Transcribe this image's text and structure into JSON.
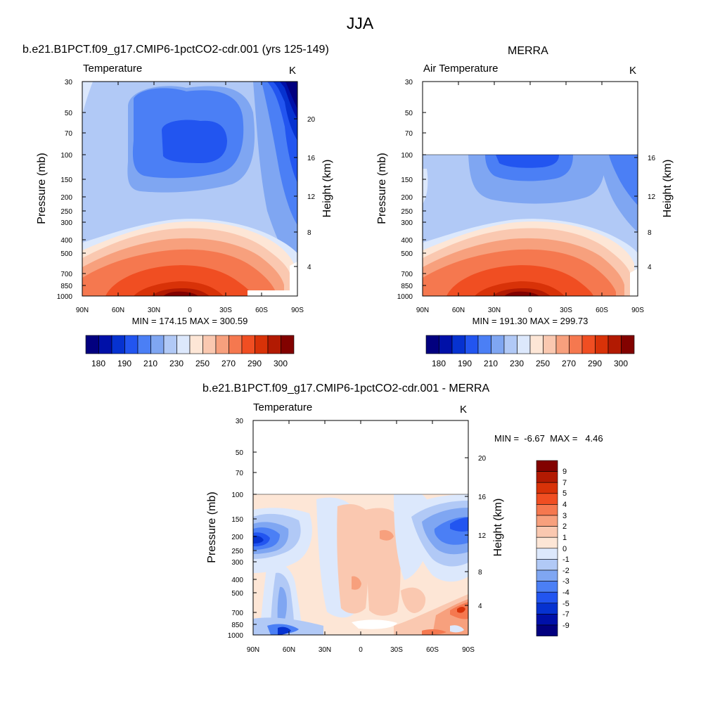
{
  "page": {
    "title": "JJA"
  },
  "chart_data": [
    {
      "type": "heatmap",
      "title": "b.e21.B1PCT.f09_g17.CMIP6-1pctCO2-cdr.001 (yrs 125-149)",
      "subtitle": "Temperature",
      "units": "K",
      "xlabel": "",
      "ylabel": "Pressure (mb)",
      "y2label": "Height (km)",
      "x_ticks": [
        "90N",
        "60N",
        "30N",
        "0",
        "30S",
        "60S",
        "90S"
      ],
      "y_ticks": [
        "30",
        "50",
        "70",
        "100",
        "150",
        "200",
        "250",
        "300",
        "400",
        "500",
        "700",
        "850",
        "1000"
      ],
      "y2_ticks": [
        "20",
        "16",
        "12",
        "8",
        "4"
      ],
      "stats": "MIN = 174.15  MAX = 300.59",
      "colorbar_labels": [
        "180",
        "190",
        "210",
        "230",
        "250",
        "270",
        "290",
        "300"
      ]
    },
    {
      "type": "heatmap",
      "title": "MERRA",
      "subtitle": "Air Temperature",
      "units": "K",
      "xlabel": "",
      "ylabel": "Pressure (mb)",
      "y2label": "Height (km)",
      "x_ticks": [
        "90N",
        "60N",
        "30N",
        "0",
        "30S",
        "60S",
        "90S"
      ],
      "y_ticks": [
        "30",
        "50",
        "70",
        "100",
        "150",
        "200",
        "250",
        "300",
        "400",
        "500",
        "700",
        "850",
        "1000"
      ],
      "y2_ticks": [
        "16",
        "12",
        "8",
        "4"
      ],
      "stats": "MIN = 191.30  MAX = 299.73",
      "colorbar_labels": [
        "180",
        "190",
        "210",
        "230",
        "250",
        "270",
        "290",
        "300"
      ]
    },
    {
      "type": "heatmap",
      "title": "b.e21.B1PCT.f09_g17.CMIP6-1pctCO2-cdr.001 - MERRA",
      "subtitle": "Temperature",
      "units": "K",
      "xlabel": "",
      "ylabel": "Pressure (mb)",
      "y2label": "Height (km)",
      "x_ticks": [
        "90N",
        "60N",
        "30N",
        "0",
        "30S",
        "60S",
        "90S"
      ],
      "y_ticks": [
        "30",
        "50",
        "70",
        "100",
        "150",
        "200",
        "250",
        "300",
        "400",
        "500",
        "700",
        "850",
        "1000"
      ],
      "y2_ticks": [
        "20",
        "16",
        "12",
        "8",
        "4"
      ],
      "stats": "MIN =  -6.67  MAX =   4.46",
      "colorbar_labels": [
        "9",
        "7",
        "5",
        "4",
        "3",
        "2",
        "1",
        "0",
        "-1",
        "-2",
        "-3",
        "-4",
        "-5",
        "-7",
        "-9"
      ]
    }
  ],
  "colors": {
    "temp_scale": [
      "#02007f",
      "#0010a8",
      "#0632d0",
      "#2255f0",
      "#4b7ff5",
      "#7fa6f2",
      "#b1c9f6",
      "#dce8fc",
      "#fde6d6",
      "#fac8b0",
      "#f7a07d",
      "#f5784f",
      "#f04e22",
      "#d83208",
      "#b21a02",
      "#820200"
    ],
    "diff_scale": [
      "#820200",
      "#b21a02",
      "#d83208",
      "#f04e22",
      "#f5784f",
      "#f7a07d",
      "#fac8b0",
      "#fde6d6",
      "#dce8fc",
      "#b1c9f6",
      "#7fa6f2",
      "#4b7ff5",
      "#2255f0",
      "#0632d0",
      "#0010a8",
      "#02007f"
    ]
  }
}
